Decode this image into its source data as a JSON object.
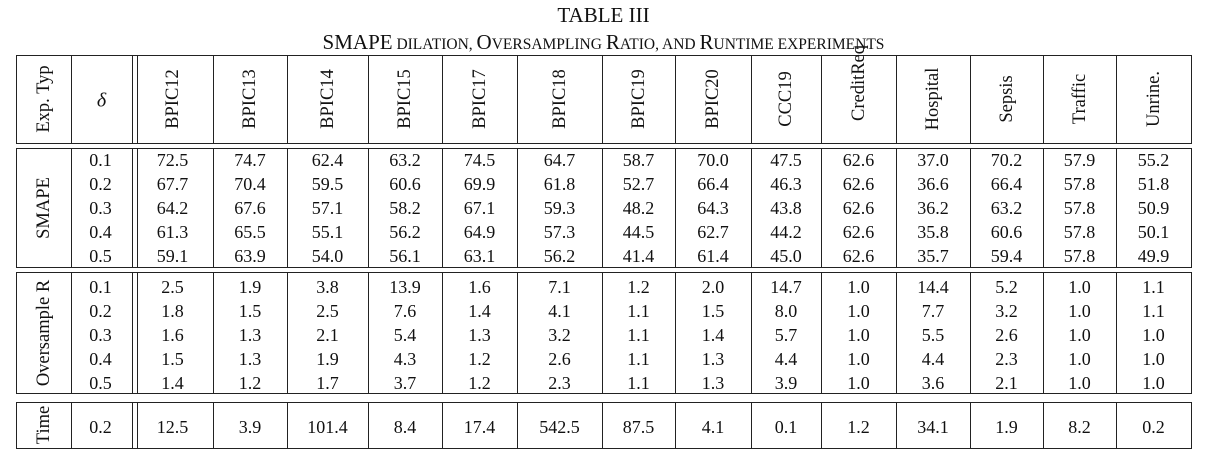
{
  "caption": {
    "label": "TABLE III",
    "title_parts": [
      {
        "text": "SMAPE",
        "sc": false
      },
      {
        "text": " dilation, ",
        "sc": true
      },
      {
        "text": "O",
        "sc": false
      },
      {
        "text": "versampling ",
        "sc": true
      },
      {
        "text": "R",
        "sc": false
      },
      {
        "text": "atio, and ",
        "sc": true
      },
      {
        "text": "R",
        "sc": false
      },
      {
        "text": "untime experiments",
        "sc": true
      }
    ]
  },
  "header": {
    "exp_type": "Exp. Typ",
    "delta": "δ",
    "datasets": [
      "BPIC12",
      "BPIC13",
      "BPIC14",
      "BPIC15",
      "BPIC17",
      "BPIC18",
      "BPIC19",
      "BPIC20",
      "CCC19",
      "CreditReq",
      "Hospital",
      "Sepsis",
      "Traffic",
      "Unrine."
    ]
  },
  "groups": [
    {
      "name": "SMAPE",
      "rows": [
        {
          "delta": "0.1",
          "values": [
            "72.5",
            "74.7",
            "62.4",
            "63.2",
            "74.5",
            "64.7",
            "58.7",
            "70.0",
            "47.5",
            "62.6",
            "37.0",
            "70.2",
            "57.9",
            "55.2"
          ]
        },
        {
          "delta": "0.2",
          "values": [
            "67.7",
            "70.4",
            "59.5",
            "60.6",
            "69.9",
            "61.8",
            "52.7",
            "66.4",
            "46.3",
            "62.6",
            "36.6",
            "66.4",
            "57.8",
            "51.8"
          ]
        },
        {
          "delta": "0.3",
          "values": [
            "64.2",
            "67.6",
            "57.1",
            "58.2",
            "67.1",
            "59.3",
            "48.2",
            "64.3",
            "43.8",
            "62.6",
            "36.2",
            "63.2",
            "57.8",
            "50.9"
          ]
        },
        {
          "delta": "0.4",
          "values": [
            "61.3",
            "65.5",
            "55.1",
            "56.2",
            "64.9",
            "57.3",
            "44.5",
            "62.7",
            "44.2",
            "62.6",
            "35.8",
            "60.6",
            "57.8",
            "50.1"
          ]
        },
        {
          "delta": "0.5",
          "values": [
            "59.1",
            "63.9",
            "54.0",
            "56.1",
            "63.1",
            "56.2",
            "41.4",
            "61.4",
            "45.0",
            "62.6",
            "35.7",
            "59.4",
            "57.8",
            "49.9"
          ]
        }
      ]
    },
    {
      "name": "Oversample R",
      "rows": [
        {
          "delta": "0.1",
          "values": [
            "2.5",
            "1.9",
            "3.8",
            "13.9",
            "1.6",
            "7.1",
            "1.2",
            "2.0",
            "14.7",
            "1.0",
            "14.4",
            "5.2",
            "1.0",
            "1.1"
          ]
        },
        {
          "delta": "0.2",
          "values": [
            "1.8",
            "1.5",
            "2.5",
            "7.6",
            "1.4",
            "4.1",
            "1.1",
            "1.5",
            "8.0",
            "1.0",
            "7.7",
            "3.2",
            "1.0",
            "1.1"
          ]
        },
        {
          "delta": "0.3",
          "values": [
            "1.6",
            "1.3",
            "2.1",
            "5.4",
            "1.3",
            "3.2",
            "1.1",
            "1.4",
            "5.7",
            "1.0",
            "5.5",
            "2.6",
            "1.0",
            "1.0"
          ]
        },
        {
          "delta": "0.4",
          "values": [
            "1.5",
            "1.3",
            "1.9",
            "4.3",
            "1.2",
            "2.6",
            "1.1",
            "1.3",
            "4.4",
            "1.0",
            "4.4",
            "2.3",
            "1.0",
            "1.0"
          ]
        },
        {
          "delta": "0.5",
          "values": [
            "1.4",
            "1.2",
            "1.7",
            "3.7",
            "1.2",
            "2.3",
            "1.1",
            "1.3",
            "3.9",
            "1.0",
            "3.6",
            "2.1",
            "1.0",
            "1.0"
          ]
        }
      ]
    },
    {
      "name": "Time",
      "rows": [
        {
          "delta": "0.2",
          "values": [
            "12.5",
            "3.9",
            "101.4",
            "8.4",
            "17.4",
            "542.5",
            "87.5",
            "4.1",
            "0.1",
            "1.2",
            "34.1",
            "1.9",
            "8.2",
            "0.2"
          ]
        }
      ]
    }
  ]
}
